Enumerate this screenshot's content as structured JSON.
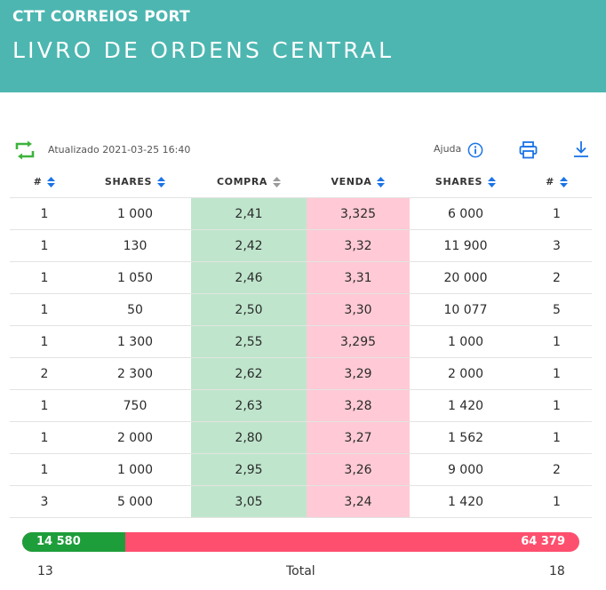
{
  "header": {
    "company": "CTT CORREIOS PORT",
    "title": "LIVRO DE ORDENS CENTRAL"
  },
  "toolbar": {
    "updated": "Atualizado 2021-03-25 16:40",
    "help_label": "Ajuda",
    "icons": [
      "refresh-icon",
      "help-icon",
      "print-icon",
      "download-icon"
    ]
  },
  "table": {
    "columns": [
      "#",
      "SHARES",
      "COMPRA",
      "VENDA",
      "SHARES",
      "#"
    ],
    "rows": [
      [
        "1",
        "1 000",
        "2,41",
        "3,325",
        "6 000",
        "1"
      ],
      [
        "1",
        "130",
        "2,42",
        "3,32",
        "11 900",
        "3"
      ],
      [
        "1",
        "1 050",
        "2,46",
        "3,31",
        "20 000",
        "2"
      ],
      [
        "1",
        "50",
        "2,50",
        "3,30",
        "10 077",
        "5"
      ],
      [
        "1",
        "1 300",
        "2,55",
        "3,295",
        "1 000",
        "1"
      ],
      [
        "2",
        "2 300",
        "2,62",
        "3,29",
        "2 000",
        "1"
      ],
      [
        "1",
        "750",
        "2,63",
        "3,28",
        "1 420",
        "1"
      ],
      [
        "1",
        "2 000",
        "2,80",
        "3,27",
        "1 562",
        "1"
      ],
      [
        "1",
        "1 000",
        "2,95",
        "3,26",
        "9 000",
        "2"
      ],
      [
        "3",
        "5 000",
        "3,05",
        "3,24",
        "1 420",
        "1"
      ]
    ]
  },
  "totals": {
    "buy_shares": "14 580",
    "sell_shares": "64 379",
    "buy_fraction": 0.185,
    "buy_orders": "13",
    "label": "Total",
    "sell_orders": "18"
  },
  "colors": {
    "header_bg": "#4db6b1",
    "buy_cell": "#bfe6cc",
    "sell_cell": "#ffcad5",
    "buy_bar": "#1e9e3a",
    "sell_bar": "#ff4f6e",
    "accent_blue": "#1a73e8",
    "refresh_green": "#3db33d"
  }
}
